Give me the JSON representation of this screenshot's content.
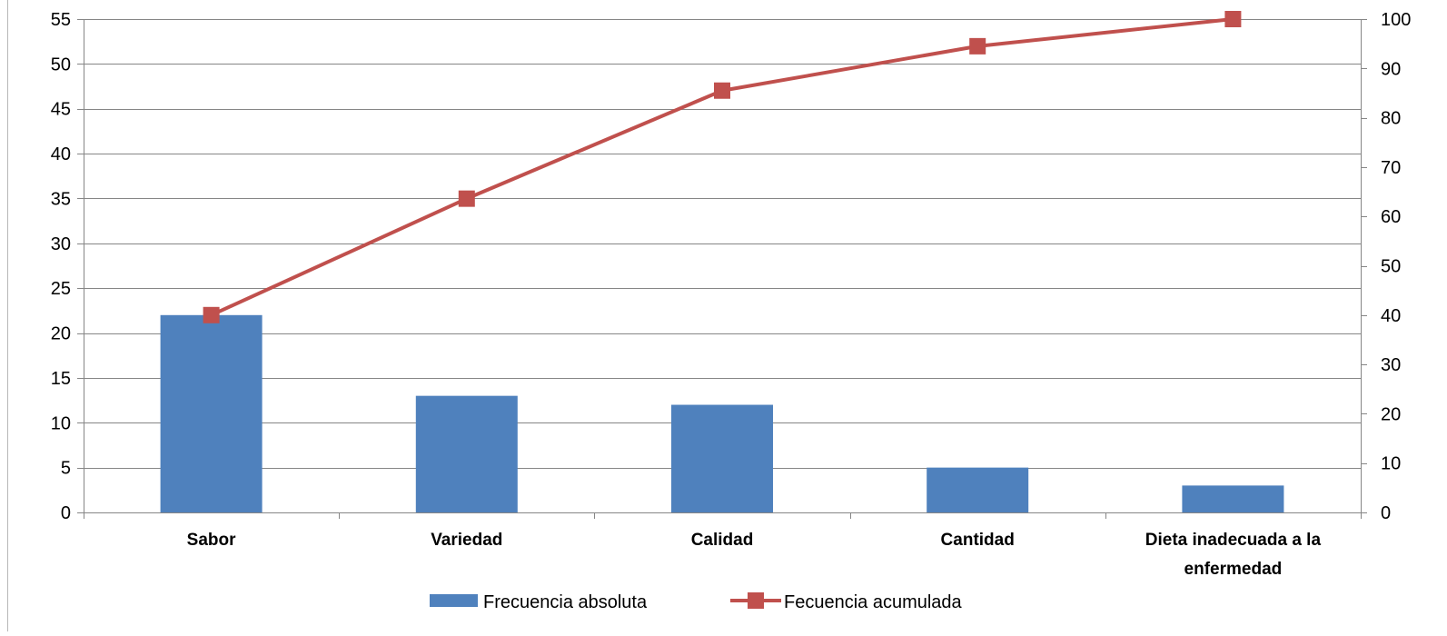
{
  "chart_data": {
    "type": "bar",
    "categories": [
      "Sabor",
      "Variedad",
      "Calidad",
      "Cantidad",
      "Dieta inadecuada a la enfermedad"
    ],
    "series": [
      {
        "name": "Frecuencia absoluta",
        "type": "bar",
        "axis": "left",
        "values": [
          22,
          13,
          12,
          5,
          3
        ],
        "color": "#4f81bd"
      },
      {
        "name": "Fecuencia acumulada",
        "type": "line",
        "axis": "right",
        "marker": "square",
        "values": [
          40,
          63.6,
          85.5,
          94.5,
          100
        ],
        "color": "#c0504d"
      }
    ],
    "y_left": {
      "min": 0,
      "max": 55,
      "step": 5,
      "ticks": [
        "0",
        "5",
        "10",
        "15",
        "20",
        "25",
        "30",
        "35",
        "40",
        "45",
        "50",
        "55"
      ]
    },
    "y_right": {
      "min": 0,
      "max": 100,
      "step": 10,
      "ticks": [
        "0",
        "10",
        "20",
        "30",
        "40",
        "50",
        "60",
        "70",
        "80",
        "90",
        "100"
      ]
    },
    "grid": "horizontal",
    "legend_position": "bottom"
  }
}
